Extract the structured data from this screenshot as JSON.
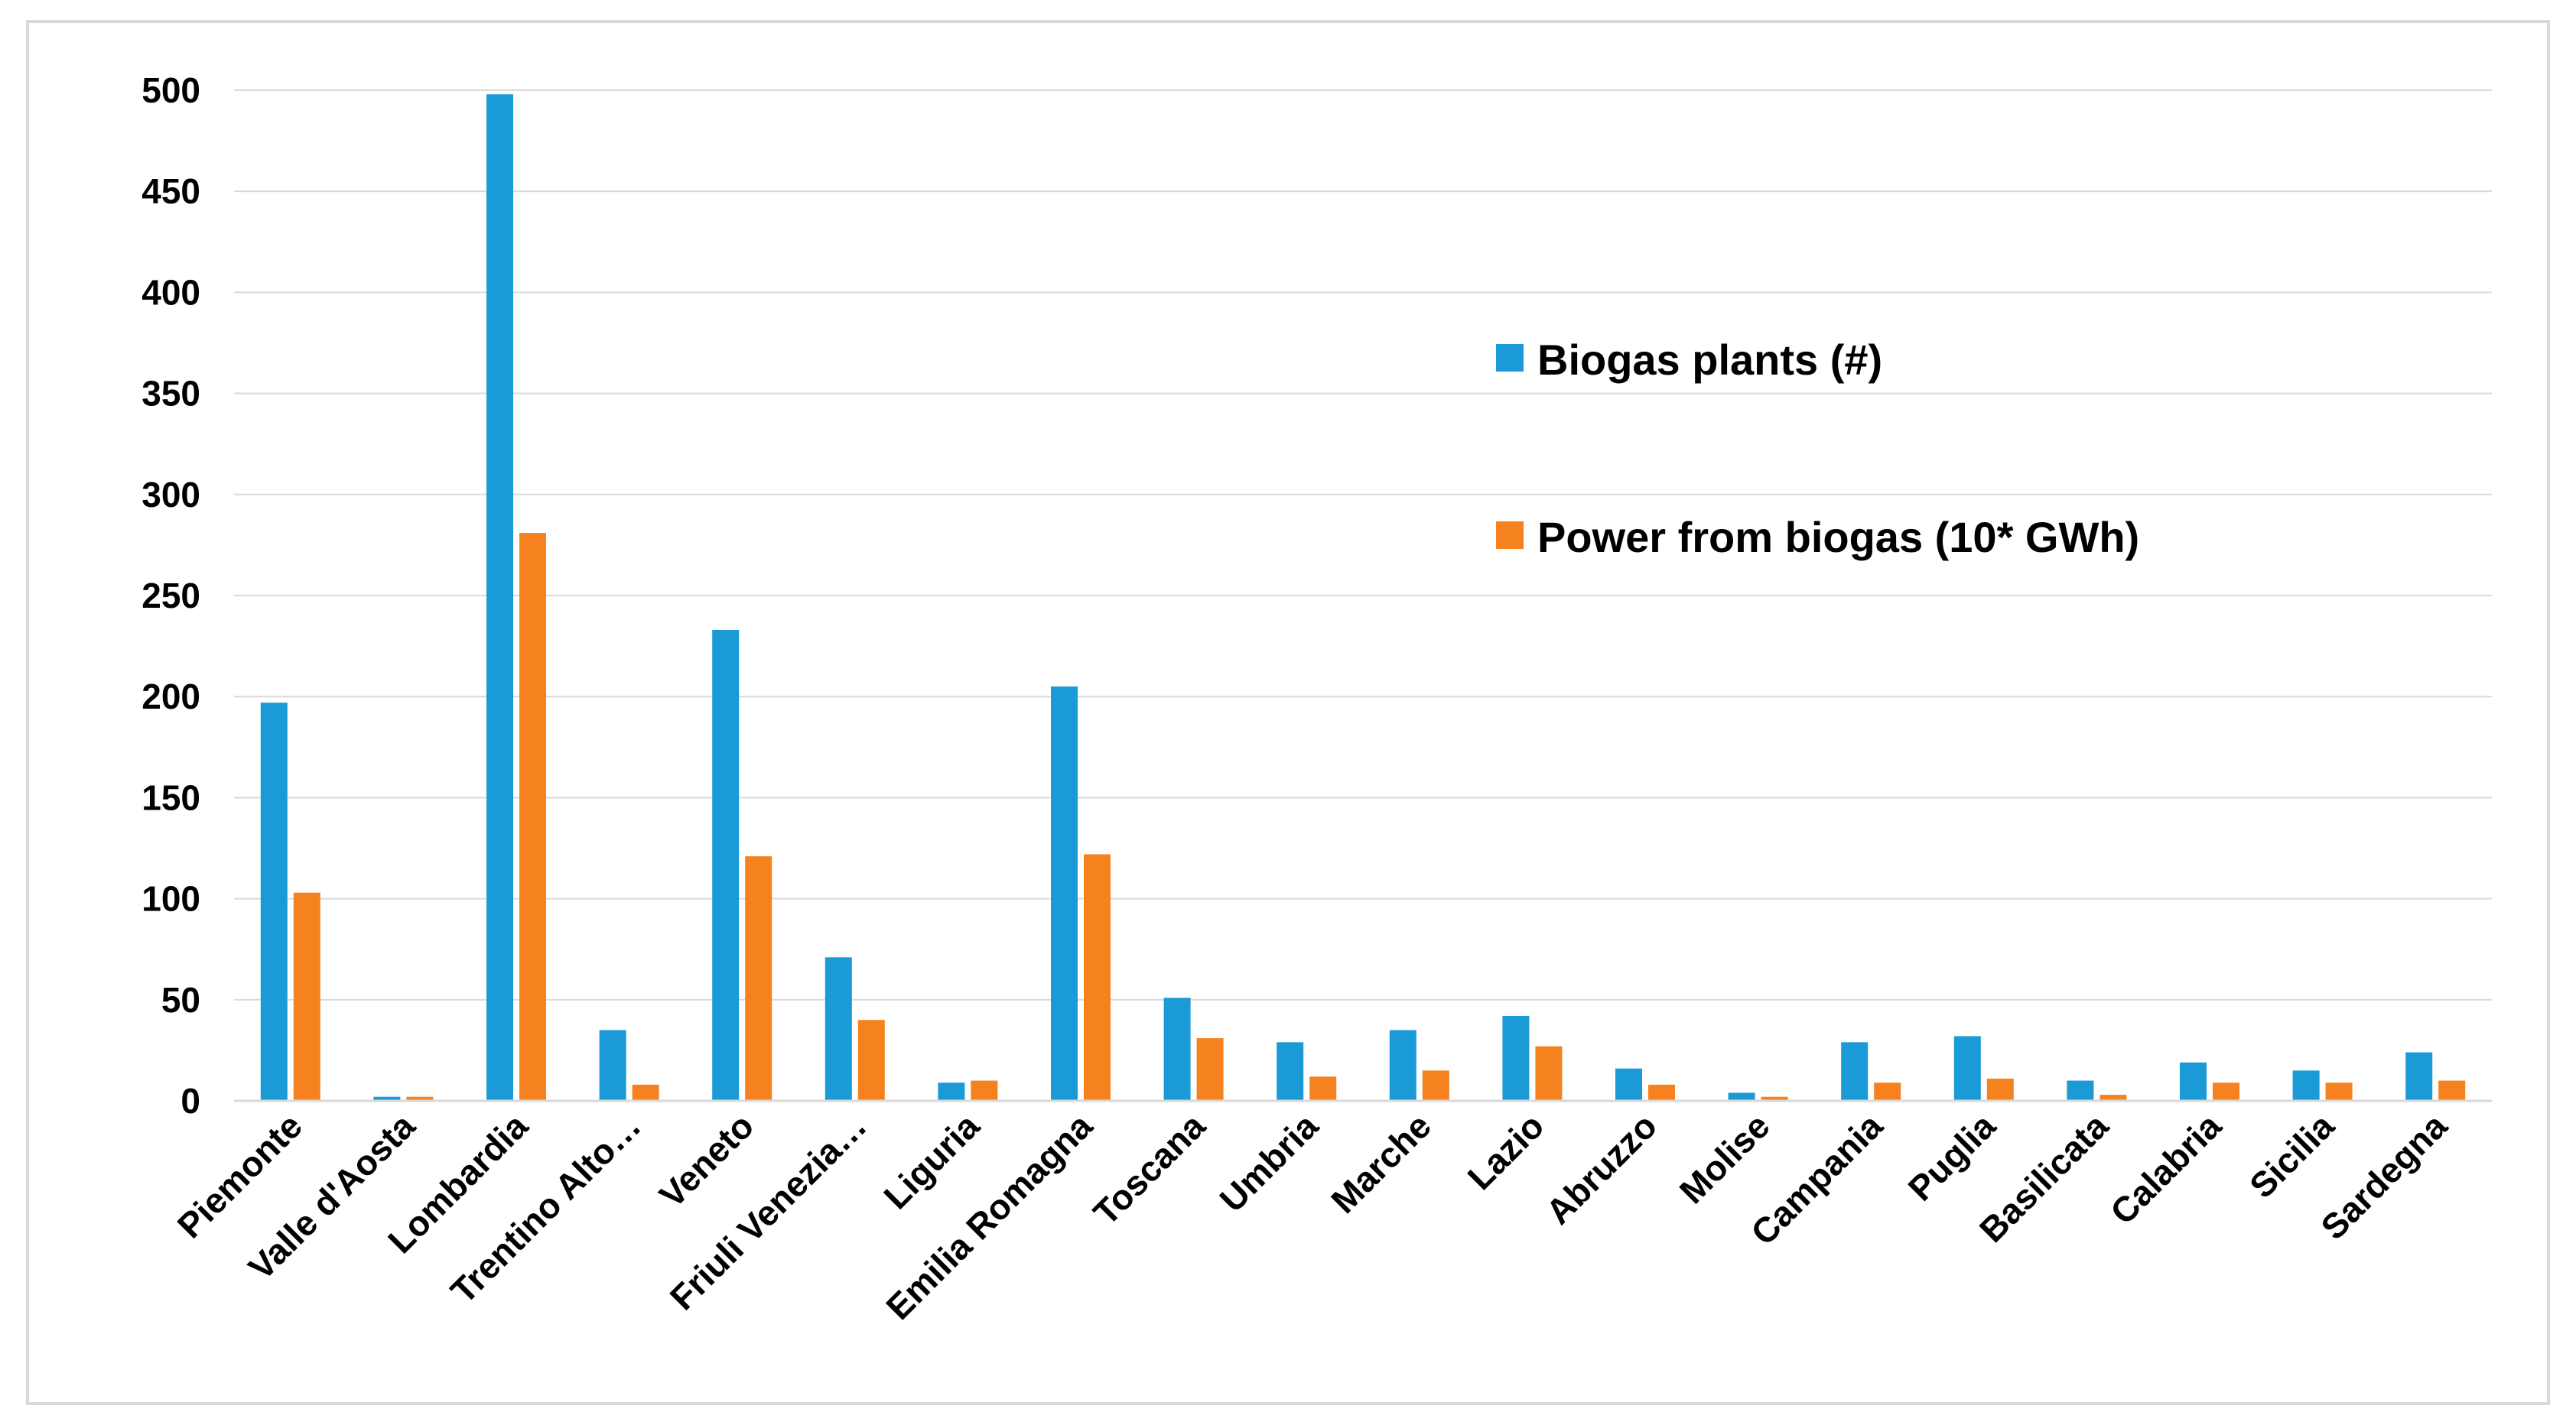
{
  "chart_data": {
    "type": "bar",
    "title": "",
    "xlabel": "",
    "ylabel": "",
    "ylim": [
      0,
      500
    ],
    "yticks": [
      0,
      50,
      100,
      150,
      200,
      250,
      300,
      350,
      400,
      450,
      500
    ],
    "grid": true,
    "legend_position": "center-right",
    "categories": [
      "Piemonte",
      "Valle d'Aosta",
      "Lombardia",
      "Trentino Alto…",
      "Veneto",
      "Friuli Venezia…",
      "Liguria",
      "Emilia Romagna",
      "Toscana",
      "Umbria",
      "Marche",
      "Lazio",
      "Abruzzo",
      "Molise",
      "Campania",
      "Puglia",
      "Basilicata",
      "Calabria",
      "Sicilia",
      "Sardegna"
    ],
    "series": [
      {
        "name": "Biogas plants (#)",
        "color": "#1a9ad6",
        "values": [
          197,
          2,
          498,
          35,
          233,
          71,
          9,
          205,
          51,
          29,
          35,
          42,
          16,
          4,
          29,
          32,
          10,
          19,
          15,
          24
        ]
      },
      {
        "name": "Power from biogas (10* GWh)",
        "color": "#f5821f",
        "values": [
          103,
          2,
          281,
          8,
          121,
          40,
          10,
          122,
          31,
          12,
          15,
          27,
          8,
          2,
          9,
          11,
          3,
          9,
          9,
          10
        ]
      }
    ]
  },
  "colors": {
    "gridline": "#d9d9d9",
    "frame": "#d9d9d9"
  }
}
